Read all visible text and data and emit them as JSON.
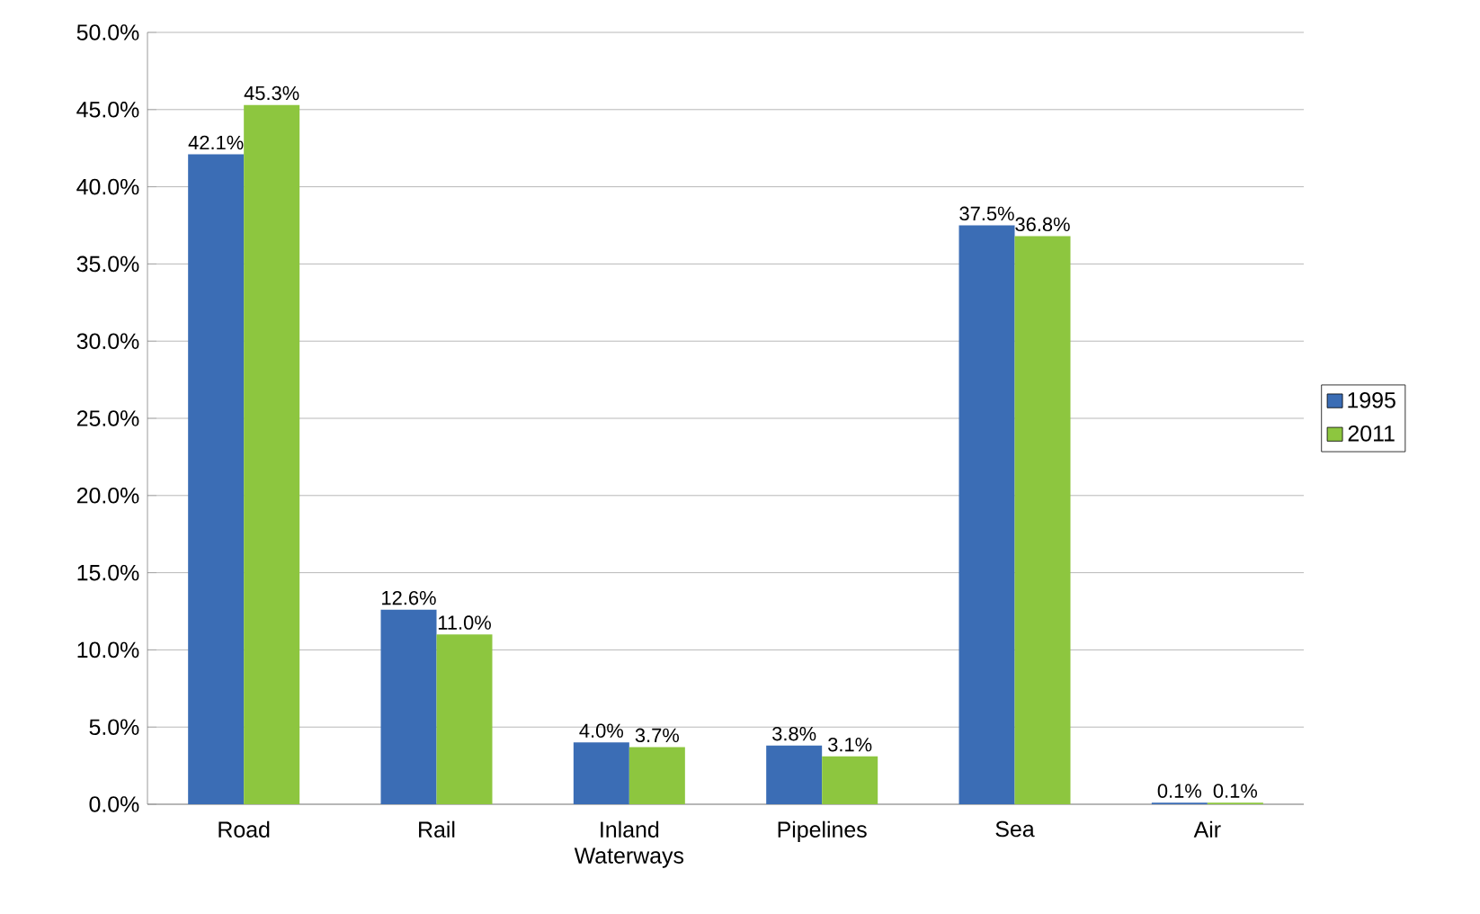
{
  "chart_data": {
    "type": "bar",
    "categories": [
      "Road",
      "Rail",
      "Inland Waterways",
      "Pipelines",
      "Sea",
      "Air"
    ],
    "series": [
      {
        "name": "1995",
        "color": "#3b6db5",
        "values": [
          42.1,
          12.6,
          4.0,
          3.8,
          37.5,
          0.1
        ],
        "value_labels": [
          "42.1%",
          "12.6%",
          "4.0%",
          "3.8%",
          "37.5%",
          "0.1%"
        ]
      },
      {
        "name": "2011",
        "color": "#8dc63f",
        "values": [
          45.3,
          11.0,
          3.7,
          3.1,
          36.8,
          0.1
        ],
        "value_labels": [
          "45.3%",
          "11.0%",
          "3.7%",
          "3.1%",
          "36.8%",
          "0.1%"
        ]
      }
    ],
    "ylim": [
      0,
      50
    ],
    "yticks": [
      {
        "value": 0,
        "label": "0.0%"
      },
      {
        "value": 5,
        "label": "5.0%"
      },
      {
        "value": 10,
        "label": "10.0%"
      },
      {
        "value": 15,
        "label": "15.0%"
      },
      {
        "value": 20,
        "label": "20.0%"
      },
      {
        "value": 25,
        "label": "25.0%"
      },
      {
        "value": 30,
        "label": "30.0%"
      },
      {
        "value": 35,
        "label": "35.0%"
      },
      {
        "value": 40,
        "label": "40.0%"
      },
      {
        "value": 45,
        "label": "45.0%"
      },
      {
        "value": 50,
        "label": "50.0%"
      }
    ],
    "grid": "y",
    "legend": "right"
  }
}
